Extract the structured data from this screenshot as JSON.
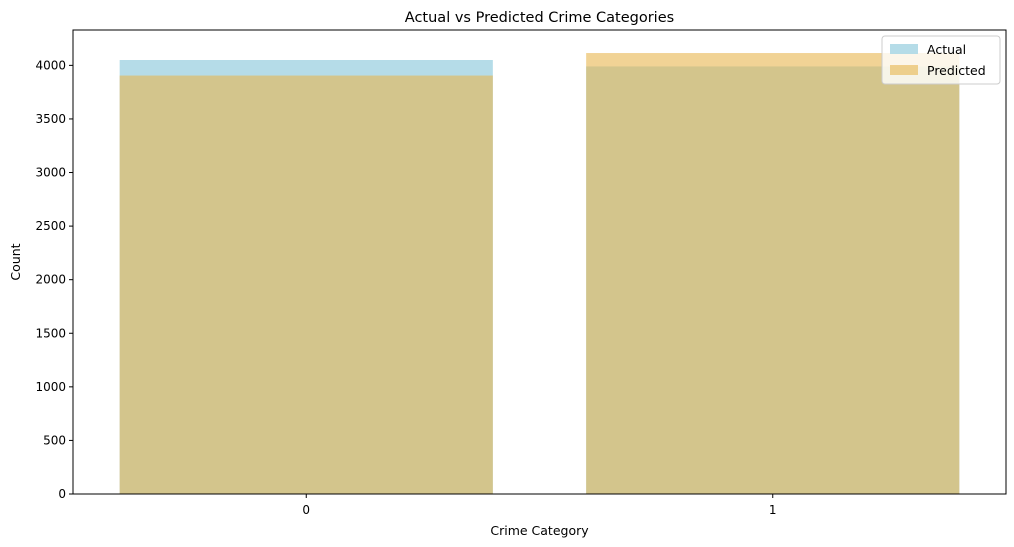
{
  "chart_data": {
    "type": "bar",
    "title": "Actual vs Predicted Crime Categories",
    "xlabel": "Crime Category",
    "ylabel": "Count",
    "categories": [
      "0",
      "1"
    ],
    "series": [
      {
        "name": "Actual",
        "values": [
          4050,
          3990
        ],
        "color": "#add8e6",
        "opacity": 0.9
      },
      {
        "name": "Predicted",
        "values": [
          3905,
          4115
        ],
        "color": "#e8b64f",
        "opacity": 0.6
      }
    ],
    "ylim": [
      0,
      4330
    ],
    "yticks": [
      0,
      500,
      1000,
      1500,
      2000,
      2500,
      3000,
      3500,
      4000
    ],
    "legend_position": "top-right",
    "grid": false
  }
}
